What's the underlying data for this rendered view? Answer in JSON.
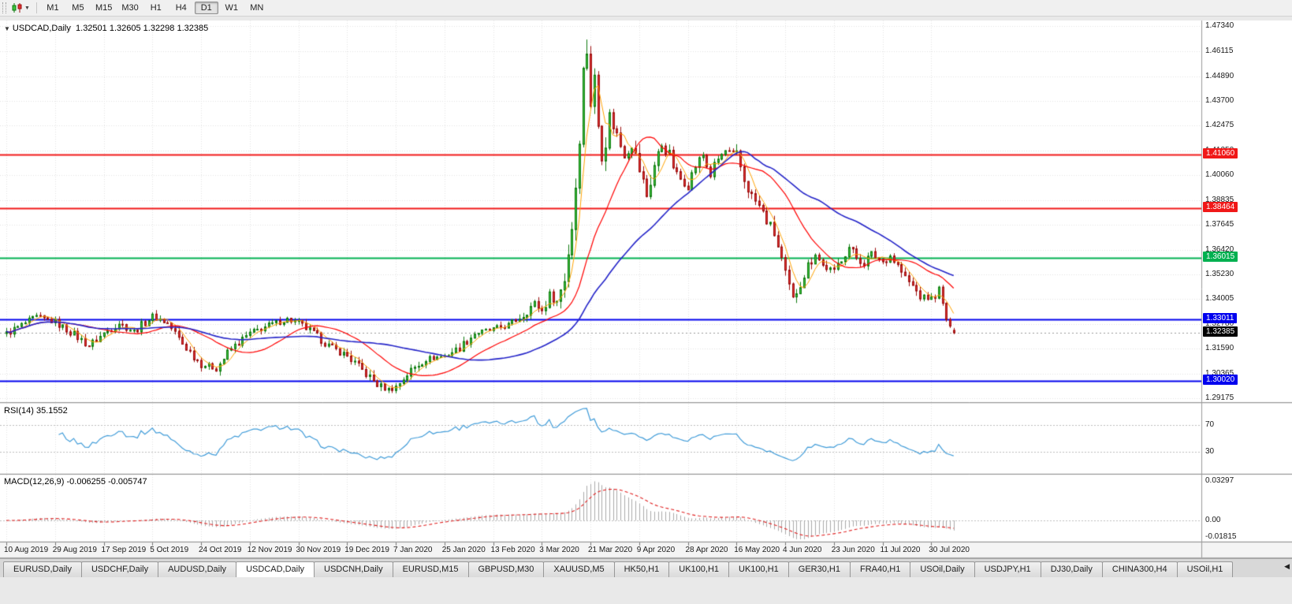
{
  "toolbar": {
    "timeframes": [
      "M1",
      "M5",
      "M15",
      "M30",
      "H1",
      "H4",
      "D1",
      "W1",
      "MN"
    ],
    "active_timeframe": "D1"
  },
  "chart": {
    "symbol": "USDCAD,Daily",
    "ohlc": "1.32501 1.32605 1.32298 1.32385"
  },
  "price_axis": {
    "labels": [
      "1.47340",
      "1.46115",
      "1.44890",
      "1.43700",
      "1.42475",
      "1.41250",
      "1.40060",
      "1.38835",
      "1.37645",
      "1.36420",
      "1.35230",
      "1.34005",
      "1.32780",
      "1.31590",
      "1.30365",
      "1.29175"
    ]
  },
  "hlines": [
    {
      "label": "1.41060",
      "price": 1.4106,
      "hex": "#f01818"
    },
    {
      "label": "1.38464",
      "price": 1.38464,
      "hex": "#f01818"
    },
    {
      "label": "1.36015",
      "price": 1.36015,
      "hex": "#00b050"
    },
    {
      "label": "1.33011",
      "price": 1.33011,
      "hex": "#0000ee"
    },
    {
      "label": "1.30020",
      "price": 1.3002,
      "hex": "#0000ee"
    }
  ],
  "current_price": {
    "label": "1.32385",
    "price": 1.32385,
    "hex": "#000000"
  },
  "rsi": {
    "name": "RSI(14)",
    "value": "35.1552",
    "levels": [
      70,
      30
    ],
    "level_labels": [
      "70",
      "30"
    ]
  },
  "macd": {
    "name": "MACD(12,26,9)",
    "values": "-0.006255 -0.005747",
    "axis_labels": [
      "0.03297",
      "0.00",
      "-0.01815"
    ],
    "axis_values": [
      0.03297,
      0,
      -0.01815
    ]
  },
  "x_axis": {
    "dates": [
      "10 Aug 2019",
      "29 Aug 2019",
      "17 Sep 2019",
      "5 Oct 2019",
      "24 Oct 2019",
      "12 Nov 2019",
      "30 Nov 2019",
      "19 Dec 2019",
      "7 Jan 2020",
      "25 Jan 2020",
      "13 Feb 2020",
      "3 Mar 2020",
      "21 Mar 2020",
      "9 Apr 2020",
      "28 Apr 2020",
      "16 May 2020",
      "4 Jun 2020",
      "23 Jun 2020",
      "11 Jul 2020",
      "30 Jul 2020"
    ]
  },
  "tabs": {
    "items": [
      "EURUSD,Daily",
      "USDCHF,Daily",
      "AUDUSD,Daily",
      "USDCAD,Daily",
      "USDCNH,Daily",
      "EURUSD,M15",
      "GBPUSD,M30",
      "XAUUSD,M5",
      "HK50,H1",
      "UK100,H1",
      "UK100,H1",
      "GER30,H1",
      "FRA40,H1",
      "USOil,Daily",
      "USDJPY,H1",
      "DJ30,Daily",
      "CHINA300,H4",
      "USOil,H1"
    ],
    "active": "USDCAD,Daily"
  },
  "colors": {
    "bull_fill": "#3ec23e",
    "bull_edge": "#0e7a0e",
    "bear_fill": "#e03030",
    "bear_edge": "#9c0f0f",
    "ma_fast": "#ffa200",
    "ma_mid": "#ff0000",
    "ma_slow": "#2424c8",
    "rsi_line": "#3f9bd8",
    "macd_hist": "#aaaaaa",
    "macd_signal": "#e02020",
    "grid": "#e2e2e2",
    "level_dotted": "#bdbdbd",
    "current_line": "#999999"
  },
  "chart_data": {
    "type": "candlestick",
    "symbol": "USDCAD",
    "period": "Daily",
    "title": "USDCAD,Daily 1.32501 1.32605 1.32298 1.32385",
    "ylim": [
      1.29175,
      1.4734
    ],
    "ohlc_current": {
      "open": 1.32501,
      "high": 1.32605,
      "low": 1.32298,
      "close": 1.32385
    },
    "num_candles": 254,
    "candles_per_xtick": 13,
    "x_tick_dates": [
      "10 Aug 2019",
      "29 Aug 2019",
      "17 Sep 2019",
      "5 Oct 2019",
      "24 Oct 2019",
      "12 Nov 2019",
      "30 Nov 2019",
      "19 Dec 2019",
      "7 Jan 2020",
      "25 Jan 2020",
      "13 Feb 2020",
      "3 Mar 2020",
      "21 Mar 2020",
      "9 Apr 2020",
      "28 Apr 2020",
      "16 May 2020",
      "4 Jun 2020",
      "23 Jun 2020",
      "11 Jul 2020",
      "30 Jul 2020"
    ],
    "close_anchors": [
      [
        0,
        1.3235
      ],
      [
        4,
        1.3275
      ],
      [
        8,
        1.3315
      ],
      [
        13,
        1.329
      ],
      [
        18,
        1.323
      ],
      [
        22,
        1.3175
      ],
      [
        26,
        1.3235
      ],
      [
        30,
        1.3285
      ],
      [
        34,
        1.3245
      ],
      [
        39,
        1.332
      ],
      [
        43,
        1.3285
      ],
      [
        47,
        1.3185
      ],
      [
        52,
        1.3085
      ],
      [
        56,
        1.3065
      ],
      [
        60,
        1.316
      ],
      [
        65,
        1.3235
      ],
      [
        70,
        1.3275
      ],
      [
        75,
        1.3305
      ],
      [
        78,
        1.3285
      ],
      [
        82,
        1.3235
      ],
      [
        86,
        1.3175
      ],
      [
        91,
        1.3125
      ],
      [
        95,
        1.3055
      ],
      [
        99,
        1.2985
      ],
      [
        102,
        1.2962
      ],
      [
        104,
        1.2975
      ],
      [
        108,
        1.3055
      ],
      [
        112,
        1.311
      ],
      [
        117,
        1.3125
      ],
      [
        121,
        1.3165
      ],
      [
        125,
        1.3235
      ],
      [
        130,
        1.3255
      ],
      [
        134,
        1.3275
      ],
      [
        138,
        1.3325
      ],
      [
        141,
        1.3385
      ],
      [
        143,
        1.3345
      ],
      [
        145,
        1.3425
      ],
      [
        147,
        1.339
      ],
      [
        149,
        1.351
      ],
      [
        151,
        1.376
      ],
      [
        152,
        1.396
      ],
      [
        153,
        1.421
      ],
      [
        154,
        1.451
      ],
      [
        155,
        1.462
      ],
      [
        156,
        1.436
      ],
      [
        157,
        1.448
      ],
      [
        158,
        1.4255
      ],
      [
        159,
        1.4105
      ],
      [
        160,
        1.4185
      ],
      [
        161,
        1.43
      ],
      [
        163,
        1.4205
      ],
      [
        165,
        1.4105
      ],
      [
        167,
        1.4155
      ],
      [
        169,
        1.4035
      ],
      [
        171,
        1.3905
      ],
      [
        173,
        1.4055
      ],
      [
        175,
        1.4155
      ],
      [
        177,
        1.4105
      ],
      [
        179,
        1.4005
      ],
      [
        182,
        1.3955
      ],
      [
        184,
        1.4055
      ],
      [
        186,
        1.4105
      ],
      [
        188,
        1.4005
      ],
      [
        190,
        1.4085
      ],
      [
        192,
        1.4125
      ],
      [
        195,
        1.4105
      ],
      [
        197,
        1.3985
      ],
      [
        199,
        1.3905
      ],
      [
        201,
        1.3855
      ],
      [
        203,
        1.3785
      ],
      [
        205,
        1.3725
      ],
      [
        207,
        1.3585
      ],
      [
        208,
        1.3505
      ],
      [
        210,
        1.3405
      ],
      [
        212,
        1.3485
      ],
      [
        214,
        1.3565
      ],
      [
        216,
        1.3625
      ],
      [
        218,
        1.3565
      ],
      [
        221,
        1.3535
      ],
      [
        223,
        1.3605
      ],
      [
        225,
        1.3655
      ],
      [
        227,
        1.3605
      ],
      [
        229,
        1.3575
      ],
      [
        231,
        1.3625
      ],
      [
        234,
        1.3585
      ],
      [
        236,
        1.3615
      ],
      [
        238,
        1.3565
      ],
      [
        240,
        1.3505
      ],
      [
        242,
        1.3465
      ],
      [
        244,
        1.3415
      ],
      [
        247,
        1.3405
      ],
      [
        249,
        1.3445
      ],
      [
        250,
        1.3375
      ],
      [
        251,
        1.3305
      ],
      [
        252,
        1.3262
      ],
      [
        253,
        1.32385
      ]
    ],
    "spike_high": {
      "index": 155,
      "price": 1.4668
    },
    "dip_low": {
      "index": 100,
      "price": 1.2952
    },
    "horizontal_levels": [
      {
        "price": 1.4106,
        "color": "#f01818",
        "role": "resistance"
      },
      {
        "price": 1.38464,
        "color": "#f01818",
        "role": "resistance"
      },
      {
        "price": 1.36015,
        "color": "#00b050",
        "role": "level"
      },
      {
        "price": 1.33011,
        "color": "#0000ee",
        "role": "support"
      },
      {
        "price": 1.3002,
        "color": "#0000ee",
        "role": "support"
      }
    ],
    "moving_averages": [
      {
        "period": 5,
        "color": "#ffa200"
      },
      {
        "period": 20,
        "color": "#ff0000"
      },
      {
        "period": 45,
        "color": "#2424c8"
      }
    ],
    "indicators": [
      {
        "name": "RSI",
        "params": [
          14
        ],
        "current": 35.1552,
        "levels": [
          70,
          30
        ]
      },
      {
        "name": "MACD",
        "params": [
          12,
          26,
          9
        ],
        "current_macd": -0.006255,
        "current_signal": -0.005747,
        "axis": [
          0.03297,
          0,
          -0.01815
        ]
      }
    ]
  }
}
